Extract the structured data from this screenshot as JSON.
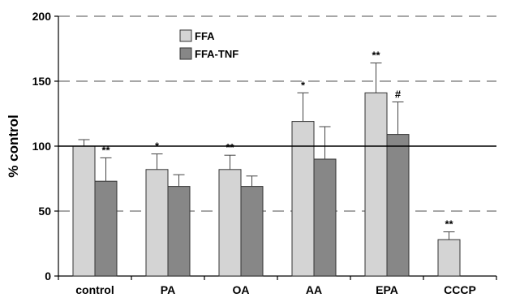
{
  "chart_data": {
    "type": "bar",
    "categories": [
      "control",
      "PA",
      "OA",
      "AA",
      "EPA",
      "CCCP"
    ],
    "series": [
      {
        "name": "FFA",
        "color": "#d4d4d4",
        "values": [
          100,
          82,
          82,
          119,
          141,
          28
        ],
        "errors": [
          5,
          12,
          11,
          22,
          23,
          6
        ],
        "annotations": [
          "",
          "*",
          "**",
          "*",
          "**",
          "**"
        ]
      },
      {
        "name": "FFA-TNF",
        "color": "#878787",
        "values": [
          73,
          69,
          69,
          90,
          109,
          null
        ],
        "errors": [
          18,
          9,
          8,
          25,
          25,
          null
        ],
        "annotations": [
          "**",
          "",
          "",
          "",
          "#",
          ""
        ]
      }
    ],
    "xlabel": "",
    "ylabel": "% control",
    "ylim": [
      0,
      200
    ],
    "yticks": [
      0,
      50,
      100,
      150,
      200
    ],
    "dashed_gridlines": [
      50,
      150,
      200
    ],
    "reference_line": 100,
    "legend_position": "top-left"
  }
}
